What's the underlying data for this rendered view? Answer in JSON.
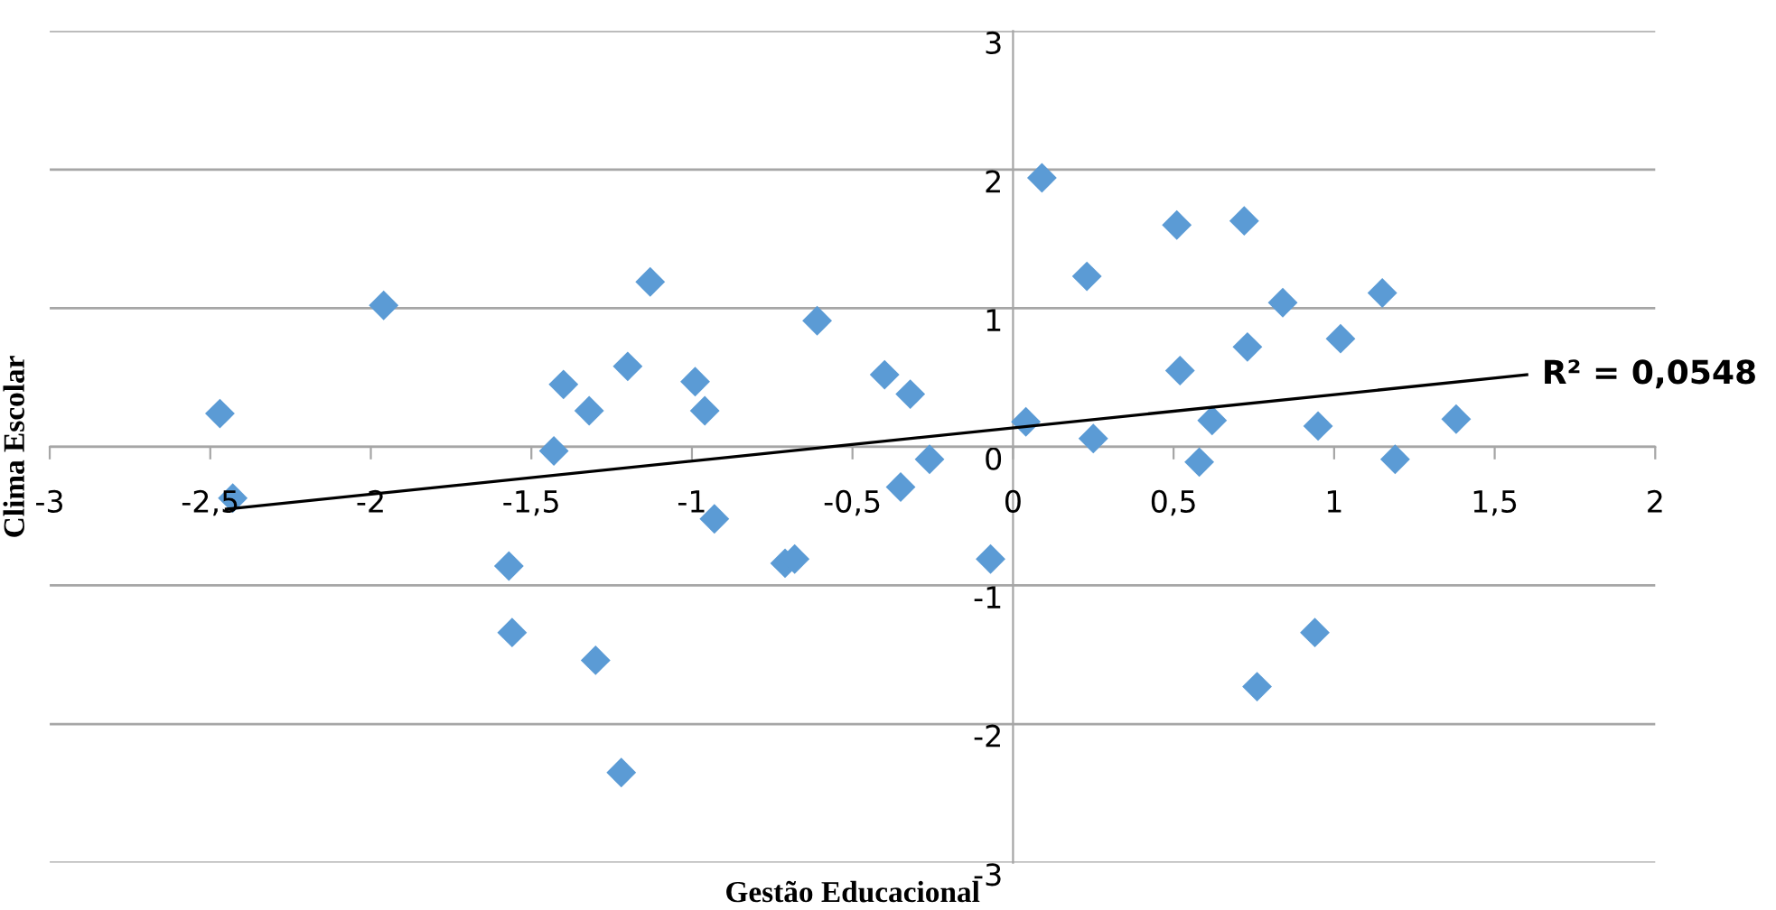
{
  "chart_data": {
    "type": "scatter",
    "xlabel": "Gestão Educacional",
    "ylabel": "Clima Escolar",
    "xlim": [
      -3,
      2
    ],
    "ylim": [
      -3,
      3
    ],
    "xticks": [
      -3,
      {
        "value": -2.5,
        "label": "-2,5"
      },
      -2,
      {
        "value": -1.5,
        "label": "-1,5"
      },
      -1,
      {
        "value": -0.5,
        "label": "-0,5"
      },
      0,
      {
        "value": 0.5,
        "label": "0,5"
      },
      1,
      {
        "value": 1.5,
        "label": "1,5"
      },
      2
    ],
    "yticks": [
      -3,
      -2,
      -1,
      0,
      1,
      2,
      3
    ],
    "grid": "y",
    "legend": false,
    "series": [
      {
        "color": "#5b9bd5",
        "marker": "diamond",
        "x": [
          -2.47,
          -2.43,
          -1.96,
          -1.13,
          -1.4,
          -1.2,
          -1.32,
          -0.99,
          -0.96,
          -1.43,
          -1.57,
          -1.56,
          -1.3,
          -1.22,
          -0.93,
          -0.61,
          -0.4,
          -0.32,
          -0.26,
          -0.35,
          -0.71,
          -0.68,
          -0.07,
          0.04,
          0.23,
          0.25,
          0.09,
          0.51,
          0.72,
          0.84,
          1.15,
          0.73,
          1.02,
          0.52,
          0.62,
          0.58,
          0.95,
          1.19,
          1.38,
          0.94,
          0.76
        ],
        "values": [
          0.24,
          -0.37,
          1.02,
          1.19,
          0.45,
          0.58,
          0.26,
          0.47,
          0.26,
          -0.03,
          -0.86,
          -1.34,
          -1.54,
          -2.35,
          -0.52,
          0.91,
          0.52,
          0.38,
          -0.09,
          -0.29,
          -0.84,
          -0.81,
          -0.81,
          0.18,
          1.23,
          0.06,
          1.94,
          1.6,
          1.63,
          1.04,
          1.11,
          0.72,
          0.78,
          0.55,
          0.19,
          -0.11,
          0.15,
          -0.09,
          0.2,
          -1.34,
          -1.73
        ]
      },
      {
        "type": "line",
        "color": "#000000",
        "marker": "none",
        "x": [
          -2.45,
          1.6
        ],
        "values": [
          -0.45,
          0.52
        ]
      }
    ],
    "annotations": [
      {
        "text": "R² = 0,0548",
        "x": 1.6,
        "y": 0.52
      }
    ]
  }
}
